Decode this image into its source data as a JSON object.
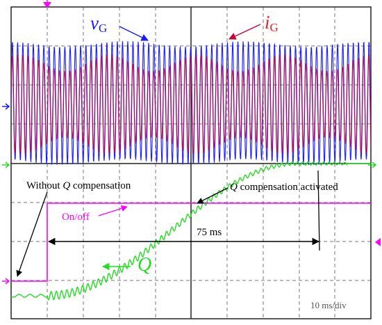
{
  "labels": {
    "vg_main": "v",
    "vg_sub": "G",
    "ig_main": "i",
    "ig_sub": "G",
    "without_q_pre": "Without ",
    "without_q_var": "Q",
    "without_q_post": " compensation",
    "q_activated_var": "Q",
    "q_activated_post": " compensation activated",
    "on_off": "On/off",
    "duration": "75 ms",
    "q_trace": "Q",
    "timebase": "10 ms/div"
  },
  "colors": {
    "vg": "#1a1aff",
    "ig": "#cc0033",
    "q": "#22dd22",
    "on_off": "#ff00ff",
    "grid": "#777777",
    "annotation": "#000000"
  }
}
